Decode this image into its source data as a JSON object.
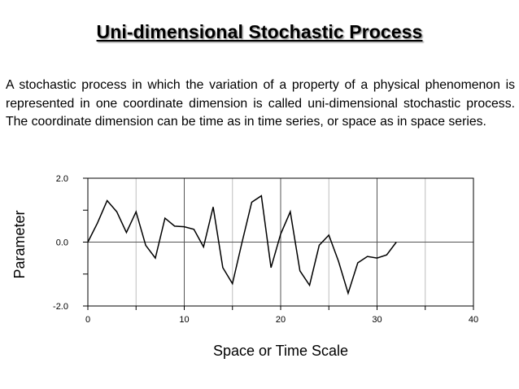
{
  "slide": {
    "title": "Uni-dimensional Stochastic Process",
    "body": "A stochastic process in which the variation of a property of a physical phenomenon is represented in one coordinate dimension is called uni-dimensional stochastic process. The coordinate dimension can be time as in time series, or space as in space series."
  },
  "chart_data": {
    "type": "line",
    "xlabel": "Space or Time Scale",
    "ylabel": "Parameter",
    "xlim": [
      0,
      40
    ],
    "ylim": [
      -2,
      2
    ],
    "x_ticks": [
      "0",
      "10",
      "20",
      "30",
      "40"
    ],
    "y_ticks": [
      "2.0",
      "0.0",
      "-2.0"
    ],
    "grid": "vertical lines at x = 5, 10, 15, 20, 25, 30, 35",
    "series": [
      {
        "x": [
          0,
          1,
          2,
          3,
          4,
          5,
          6,
          7,
          8,
          9,
          10,
          11,
          12,
          13,
          14,
          15,
          16,
          17,
          18,
          19,
          20,
          21,
          22,
          23,
          24,
          25,
          26,
          27,
          28,
          29,
          30,
          31,
          32
        ],
        "y": [
          0.0,
          0.6,
          1.3,
          0.95,
          0.3,
          0.95,
          -0.1,
          -0.5,
          0.75,
          0.5,
          0.48,
          0.4,
          -0.15,
          1.1,
          -0.8,
          -1.3,
          0.0,
          1.25,
          1.45,
          -0.8,
          0.25,
          0.95,
          -0.9,
          -1.35,
          -0.1,
          0.22,
          -0.6,
          -1.6,
          -0.65,
          -0.45,
          -0.5,
          -0.4,
          0.0
        ]
      }
    ]
  }
}
